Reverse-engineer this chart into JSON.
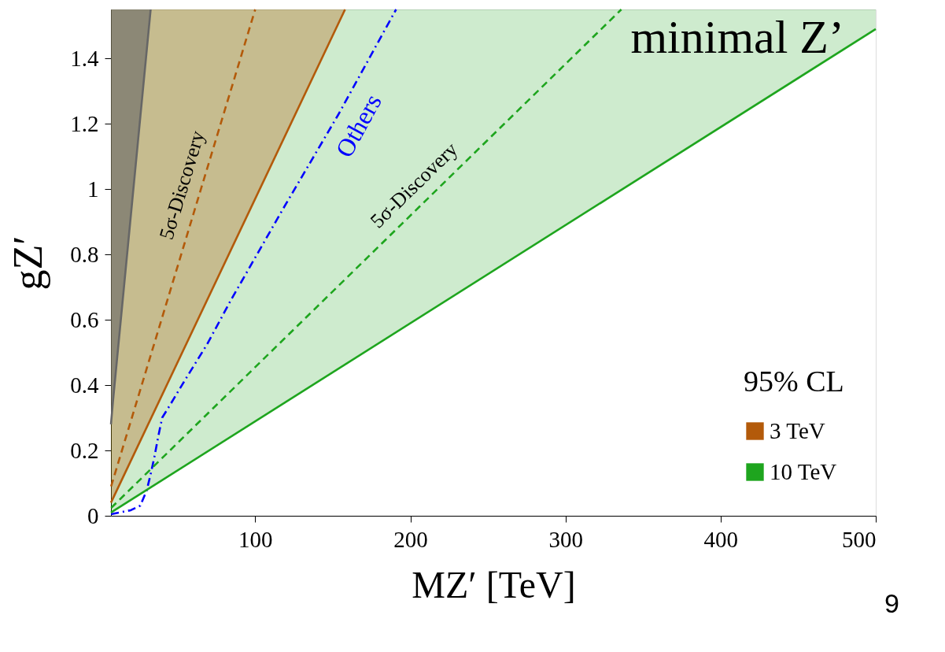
{
  "chart_data": {
    "type": "line",
    "xlabel": "MZ′ [TeV]",
    "ylabel": "gZ′",
    "legend_title": "95% CL",
    "xlim": [
      7,
      500
    ],
    "ylim": [
      0,
      1.55
    ],
    "xticks": [
      100,
      200,
      300,
      400,
      500
    ],
    "yticks": [
      0,
      0.2,
      0.4,
      0.6,
      0.8,
      1,
      1.2,
      1.4
    ],
    "grid": false,
    "legend": "bottom right",
    "marker": "none",
    "series": [
      {
        "color": "#666666",
        "line_style": "solid",
        "x": [
          7,
          8.3,
          32.6
        ],
        "values": [
          0.28,
          0.35,
          1.55
        ],
        "lower": [
          0.28,
          0.35,
          1.55
        ],
        "upper": [
          1.55,
          1.55,
          1.55
        ]
      },
      {
        "name": "3 TeV",
        "color": "#b35a0a",
        "line_style": "solid",
        "x": [
          7,
          157.9
        ],
        "values": [
          0.04,
          1.55
        ],
        "lower": [
          0.04,
          1.55
        ],
        "upper": [
          1.55,
          1.55
        ]
      },
      {
        "name": "5σ-Discovery",
        "color": "#b35a0a",
        "line_style": "dashed",
        "x": [
          7.1,
          100
        ],
        "values": [
          0.09,
          1.55
        ]
      },
      {
        "name": "Others",
        "color": "#0000ff",
        "line_style": "dashdot",
        "x": [
          7.1,
          19.8,
          25.9,
          30,
          32.5,
          35,
          37.6,
          40,
          45.2,
          55.3,
          69,
          84.3,
          118,
          153.8,
          182.7,
          190.8
        ],
        "values": [
          0.005,
          0.017,
          0.031,
          0.077,
          0.125,
          0.18,
          0.245,
          0.3,
          0.34,
          0.42,
          0.525,
          0.66,
          0.94,
          1.23,
          1.48,
          1.55
        ]
      },
      {
        "name": "5σ-Discovery",
        "color": "#1ea51e",
        "line_style": "dashed",
        "x": [
          7.1,
          336
        ],
        "values": [
          0.024,
          1.55
        ]
      },
      {
        "name": "10 TeV",
        "color": "#1ea51e",
        "line_style": "solid",
        "x": [
          7,
          500
        ],
        "values": [
          0.01,
          1.49
        ],
        "lower": [
          0.01,
          1.49
        ],
        "upper": [
          1.55,
          1.55
        ]
      }
    ],
    "annotations": [
      "minimal Z’",
      "9"
    ]
  }
}
